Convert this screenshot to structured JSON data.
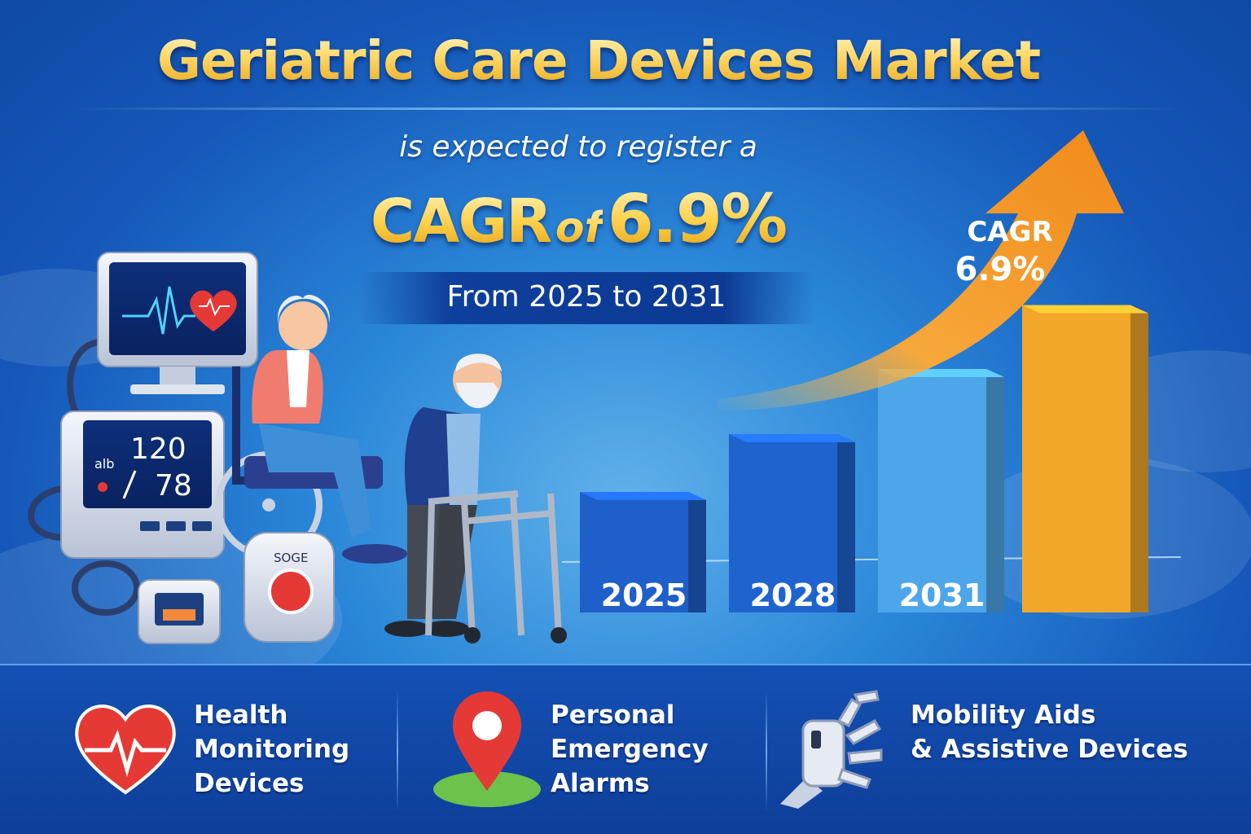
{
  "header": {
    "title": "Geriatric Care Devices Market",
    "subtitle": "is expected to register a",
    "cagr_word": "CAGR",
    "cagr_of": "of",
    "cagr_value": "6.9%",
    "period": "From 2025 to 2031"
  },
  "chart_data": {
    "type": "bar",
    "categories": [
      "2025",
      "2028",
      "2031",
      ""
    ],
    "values": [
      1.0,
      1.48,
      2.02,
      2.55
    ],
    "arrow_label": [
      "CAGR",
      "6.9%"
    ],
    "colors": [
      "#1e5fc9",
      "#1f63cf",
      "#4ea6ea",
      "#f2a62a"
    ]
  },
  "illustration": {
    "bp_systolic": "120",
    "bp_diastolic": "78",
    "bp_unit": "alb",
    "alarm_label": "SOGE"
  },
  "features": [
    {
      "label": "Health Monitoring Devices",
      "lines": [
        "Health",
        "Monitoring",
        "Devices"
      ],
      "icon": "heart-pulse-icon"
    },
    {
      "label": "Personal Emergency Alarms",
      "lines": [
        "Personal",
        "Emergency",
        "Alarms"
      ],
      "icon": "location-pin-icon"
    },
    {
      "label": "Mobility Aids & Assistive Devices",
      "lines": [
        "Mobility Aids",
        "& Assistive Devices"
      ],
      "icon": "robotic-hand-icon"
    }
  ],
  "colors": {
    "background": "#1558b9",
    "gold": "#ffd24d",
    "arrow": "#f29a1e",
    "footer": "#0e3f99"
  }
}
